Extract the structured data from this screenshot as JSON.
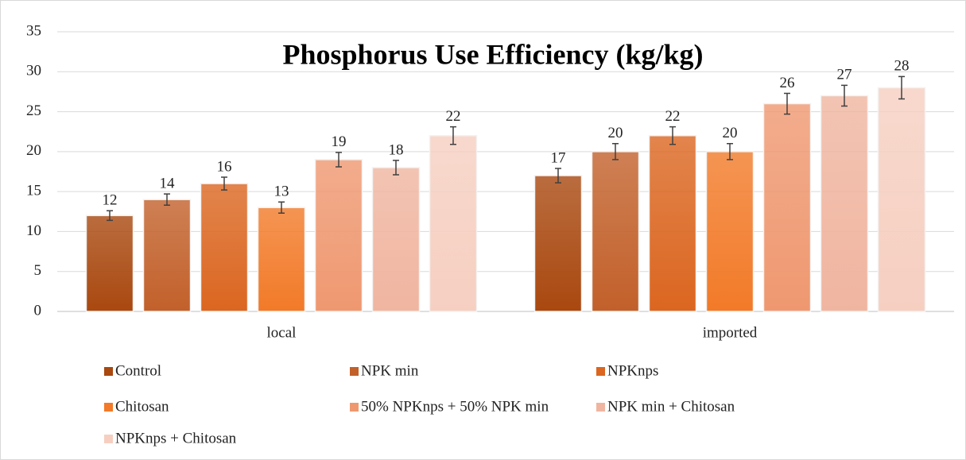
{
  "chart_data": {
    "type": "bar",
    "title": "Phosphorus Use Efficiency (kg/kg)",
    "categories": [
      "local",
      "imported"
    ],
    "series": [
      {
        "name": "Control",
        "color": "#a9480f",
        "values": [
          12,
          17
        ],
        "errors": [
          0.6,
          0.9
        ]
      },
      {
        "name": "NPK min",
        "color": "#c2602a",
        "values": [
          14,
          20
        ],
        "errors": [
          0.7,
          1.0
        ]
      },
      {
        "name": "NPKnps",
        "color": "#db6620",
        "values": [
          16,
          22
        ],
        "errors": [
          0.8,
          1.1
        ]
      },
      {
        "name": "Chitosan",
        "color": "#f27a28",
        "values": [
          13,
          20
        ],
        "errors": [
          0.7,
          1.0
        ]
      },
      {
        "name": "50% NPKnps + 50% NPK min",
        "color": "#ef9870",
        "values": [
          19,
          26
        ],
        "errors": [
          0.9,
          1.3
        ]
      },
      {
        "name": "NPK min + Chitosan",
        "color": "#f0b5a0",
        "values": [
          18,
          27
        ],
        "errors": [
          0.9,
          1.3
        ]
      },
      {
        "name": "NPKnps + Chitosan",
        "color": "#f6cfc1",
        "values": [
          22,
          28
        ],
        "errors": [
          1.1,
          1.4
        ]
      }
    ],
    "ylim": [
      0,
      35
    ],
    "yticks": [
      0,
      5,
      10,
      15,
      20,
      25,
      30,
      35
    ],
    "grid": true,
    "legend": "bottom"
  }
}
